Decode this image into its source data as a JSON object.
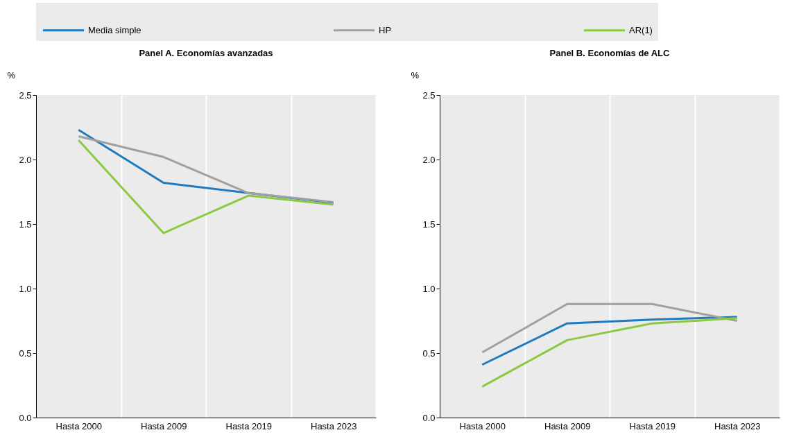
{
  "chart_data": [
    {
      "type": "line",
      "title": "Panel A. Economías avanzadas",
      "ylabel": "%",
      "categories": [
        "Hasta 2000",
        "Hasta 2009",
        "Hasta 2019",
        "Hasta 2023"
      ],
      "ylim": [
        0,
        2.5
      ],
      "yticks": [
        {
          "value": 0,
          "label": "0.0"
        },
        0.5,
        {
          "value": 1,
          "label": "1.0"
        },
        1.5,
        {
          "value": 2,
          "label": "2.0"
        },
        2.5
      ],
      "grid": "x",
      "legend": "top",
      "series": [
        {
          "name": "Media simple",
          "color": "#1f7bc1",
          "values": [
            2.23,
            1.82,
            1.74,
            1.665
          ]
        },
        {
          "name": "HP",
          "color": "#a0a0a0",
          "values": [
            2.18,
            2.02,
            1.74,
            1.67
          ]
        },
        {
          "name": "AR(1)",
          "color": "#8cc841",
          "values": [
            2.15,
            1.43,
            1.72,
            1.65
          ]
        }
      ]
    },
    {
      "type": "line",
      "title": "Panel B. Economías de ALC",
      "ylabel": "%",
      "categories": [
        "Hasta 2000",
        "Hasta 2009",
        "Hasta 2019",
        "Hasta 2023"
      ],
      "ylim": [
        0,
        2.5
      ],
      "yticks": [
        {
          "value": 0,
          "label": "0.0"
        },
        0.5,
        {
          "value": 1,
          "label": "1.0"
        },
        1.5,
        {
          "value": 2,
          "label": "2.0"
        },
        2.5
      ],
      "grid": "x",
      "legend": "top",
      "series": [
        {
          "name": "Media simple",
          "color": "#1f7bc1",
          "values": [
            0.41,
            0.73,
            0.76,
            0.78
          ]
        },
        {
          "name": "HP",
          "color": "#a0a0a0",
          "values": [
            0.505,
            0.88,
            0.88,
            0.75
          ]
        },
        {
          "name": "AR(1)",
          "color": "#8cc841",
          "values": [
            0.24,
            0.6,
            0.73,
            0.77
          ]
        }
      ]
    }
  ]
}
